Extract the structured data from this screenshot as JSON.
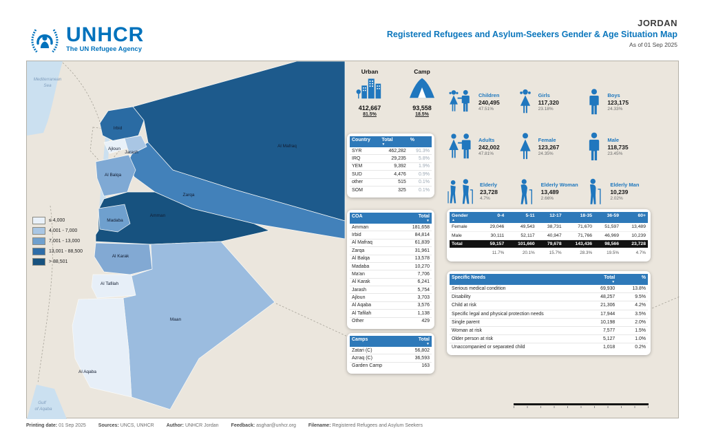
{
  "header": {
    "brand": "UNHCR",
    "tagline": "The UN Refugee Agency",
    "country": "JORDAN",
    "title": "Registered Refugees and Asylum-Seekers Gender & Age Situation Map",
    "as_of": "As of 01 Sep 2025"
  },
  "colors": {
    "brand_blue": "#0072BC",
    "title_blue": "#0B76BC",
    "table_header_blue": "#2E79B9",
    "panel_beige": "#EBE6DD",
    "sea_blue": "#CBE0F0",
    "total_row_black": "#121212"
  },
  "population": {
    "urban": {
      "label": "Urban",
      "value": "412,667",
      "pct": "81.5%"
    },
    "camp": {
      "label": "Camp",
      "value": "93,558",
      "pct": "18.5%"
    }
  },
  "demographics": [
    {
      "label": "Children",
      "value": "240,495",
      "pct": "47.51%"
    },
    {
      "label": "Girls",
      "value": "117,320",
      "pct": "23.18%"
    },
    {
      "label": "Boys",
      "value": "123,175",
      "pct": "24.33%"
    },
    {
      "label": "Adults",
      "value": "242,002",
      "pct": "47.81%"
    },
    {
      "label": "Female",
      "value": "123,267",
      "pct": "24.35%"
    },
    {
      "label": "Male",
      "value": "118,735",
      "pct": "23.45%"
    },
    {
      "label": "Elderly",
      "value": "23,728",
      "pct": "4.7%"
    },
    {
      "label": "Elderly Woman",
      "value": "13,489",
      "pct": "2.66%"
    },
    {
      "label": "Elderly Man",
      "value": "10,239",
      "pct": "2.02%"
    }
  ],
  "country_table": {
    "headers": [
      "Country",
      "Total",
      "%"
    ],
    "rows": [
      [
        "SYR",
        "462,282",
        "91.3%"
      ],
      [
        "IRQ",
        "29,235",
        "5.8%"
      ],
      [
        "YEM",
        "9,392",
        "1.9%"
      ],
      [
        "SUD",
        "4,476",
        "0.9%"
      ],
      [
        "other",
        "515",
        "0.1%"
      ],
      [
        "SOM",
        "325",
        "0.1%"
      ]
    ]
  },
  "coa_table": {
    "headers": [
      "COA",
      "Total"
    ],
    "rows": [
      [
        "Amman",
        "181,658"
      ],
      [
        "Irbid",
        "84,814"
      ],
      [
        "Al Mafraq",
        "61,839"
      ],
      [
        "Zarqa",
        "31,961"
      ],
      [
        "Al Balqa",
        "13,578"
      ],
      [
        "Madaba",
        "10,270"
      ],
      [
        "Ma'an",
        "7,706"
      ],
      [
        "Al Karak",
        "6,241"
      ],
      [
        "Jarash",
        "5,754"
      ],
      [
        "Ajloun",
        "3,703"
      ],
      [
        "Al Aqaba",
        "3,576"
      ],
      [
        "Al Tafilah",
        "1,138"
      ],
      [
        "Other",
        "429"
      ]
    ]
  },
  "camps_table": {
    "headers": [
      "Camps",
      "Total"
    ],
    "rows": [
      [
        "Zatari (C)",
        "56,802"
      ],
      [
        "Azraq (C)",
        "36,593"
      ],
      [
        "Garden Camp",
        "163"
      ]
    ]
  },
  "gender_age_table": {
    "headers": [
      "Gender",
      "0-4",
      "5-11",
      "12-17",
      "18-35",
      "36-59",
      "60+"
    ],
    "rows": [
      {
        "label": "Female",
        "values": [
          "29,046",
          "49,543",
          "38,731",
          "71,670",
          "51,597",
          "13,489"
        ]
      },
      {
        "label": "Male",
        "values": [
          "30,111",
          "52,117",
          "40,947",
          "71,766",
          "46,969",
          "10,239"
        ]
      }
    ],
    "total": {
      "label": "Total",
      "values": [
        "59,157",
        "101,660",
        "79,678",
        "143,436",
        "98,566",
        "23,728"
      ]
    },
    "pct": [
      "11.7%",
      "20.1%",
      "15.7%",
      "28.3%",
      "19.5%",
      "4.7%"
    ]
  },
  "specific_needs_table": {
    "headers": [
      "Specific Needs",
      "Total",
      "%"
    ],
    "rows": [
      [
        "Serious medical condition",
        "69,930",
        "13.8%"
      ],
      [
        "Disability",
        "48,257",
        "9.5%"
      ],
      [
        "Child at risk",
        "21,306",
        "4.2%"
      ],
      [
        "Specific legal and physical protection needs",
        "17,944",
        "3.5%"
      ],
      [
        "Single parent",
        "10,198",
        "2.0%"
      ],
      [
        "Woman at risk",
        "7,577",
        "1.5%"
      ],
      [
        "Older person at risk",
        "5,127",
        "1.0%"
      ],
      [
        "Unaccompanied or separated child",
        "1,018",
        "0.2%"
      ]
    ]
  },
  "map": {
    "legend": [
      {
        "label": "≤ 4,000",
        "color": "#E9F1F9"
      },
      {
        "label": "4,001 - 7,000",
        "color": "#A9C6E4"
      },
      {
        "label": "7,001 - 13,000",
        "color": "#6FA0CE"
      },
      {
        "label": "13,001 - 88,500",
        "color": "#2E6DA8"
      },
      {
        "label": "> 88,501",
        "color": "#17527F"
      }
    ],
    "regions": [
      {
        "name": "Irbid",
        "color": "#2A6BA3"
      },
      {
        "name": "Ajloun",
        "color": "#E9F1F9"
      },
      {
        "name": "Jarash",
        "color": "#A9C6E4"
      },
      {
        "name": "Al Balqa",
        "color": "#7FA9D4"
      },
      {
        "name": "Zarqa",
        "color": "#4281BA"
      },
      {
        "name": "Al Mafraq",
        "color": "#1D5A8C"
      },
      {
        "name": "Amman",
        "color": "#17527F"
      },
      {
        "name": "Madaba",
        "color": "#6FA0CE"
      },
      {
        "name": "Al Karak",
        "color": "#82A9D3"
      },
      {
        "name": "Al Tafilah",
        "color": "#E7EFF8"
      },
      {
        "name": "Maan",
        "color": "#9BBCDF"
      },
      {
        "name": "Al Aqaba",
        "color": "#E7EFF8"
      }
    ],
    "sea_labels": {
      "mediterranean": "Mediterranean\nSea",
      "gulf": "Gulf\nof Aqaba"
    }
  },
  "footer": {
    "segments": [
      {
        "label": "Printing date:",
        "value": "01 Sep 2025"
      },
      {
        "label": "Sources:",
        "value": "UNCS, UNHCR"
      },
      {
        "label": "Author:",
        "value": "UNHCR   Jordan"
      },
      {
        "label": "Feedback:",
        "value": "asghar@unhcr.org"
      },
      {
        "label": "Filename:",
        "value": "Registered Refugees and Asylum Seekers"
      }
    ]
  }
}
